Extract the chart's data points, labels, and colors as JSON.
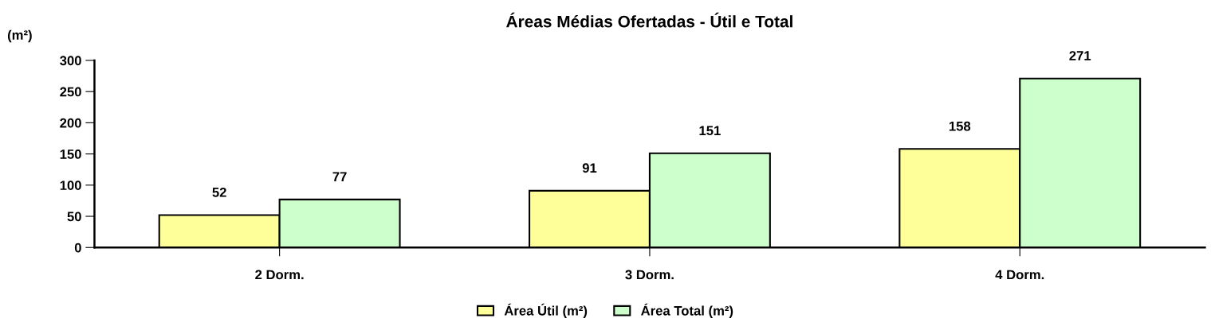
{
  "chart_data": {
    "type": "bar",
    "title": "Áreas Médias Ofertadas - Útil e Total",
    "ylabel": "(m²)",
    "categories": [
      "2 Dorm.",
      "3 Dorm.",
      "4 Dorm."
    ],
    "series": [
      {
        "name": "Área Útil (m²)",
        "color": "#ffff99",
        "values": [
          52,
          91,
          158
        ]
      },
      {
        "name": "Área Total (m²)",
        "color": "#ccffcc",
        "values": [
          77,
          151,
          271
        ]
      }
    ],
    "ylim": [
      0,
      300
    ],
    "yticks": [
      0,
      50,
      100,
      150,
      200,
      250,
      300
    ],
    "data_labels": true,
    "grid": false,
    "legend": "bottom"
  }
}
